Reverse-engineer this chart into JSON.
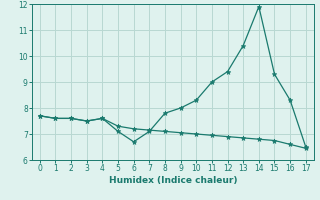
{
  "xlabel": "Humidex (Indice chaleur)",
  "line1_x": [
    0,
    1,
    2,
    3,
    4,
    5,
    6,
    7,
    8,
    9,
    10,
    11,
    12,
    13,
    14,
    15,
    16,
    17
  ],
  "line1_y": [
    7.7,
    7.6,
    7.6,
    7.5,
    7.6,
    7.1,
    6.7,
    7.1,
    7.8,
    8.0,
    8.3,
    9.0,
    9.4,
    10.4,
    11.9,
    9.3,
    8.3,
    6.5
  ],
  "line2_x": [
    0,
    1,
    2,
    3,
    4,
    5,
    6,
    7,
    8,
    9,
    10,
    11,
    12,
    13,
    14,
    15,
    16,
    17
  ],
  "line2_y": [
    7.7,
    7.6,
    7.6,
    7.5,
    7.6,
    7.3,
    7.2,
    7.15,
    7.1,
    7.05,
    7.0,
    6.95,
    6.9,
    6.85,
    6.8,
    6.75,
    6.6,
    6.45
  ],
  "line_color": "#1a7a6e",
  "bg_color": "#dff2ee",
  "grid_color": "#b8d8d2",
  "ylim": [
    6,
    12
  ],
  "xlim": [
    -0.5,
    17.5
  ],
  "yticks": [
    6,
    7,
    8,
    9,
    10,
    11,
    12
  ],
  "xticks": [
    0,
    1,
    2,
    3,
    4,
    5,
    6,
    7,
    8,
    9,
    10,
    11,
    12,
    13,
    14,
    15,
    16,
    17
  ],
  "tick_fontsize": 5.5,
  "xlabel_fontsize": 6.5
}
